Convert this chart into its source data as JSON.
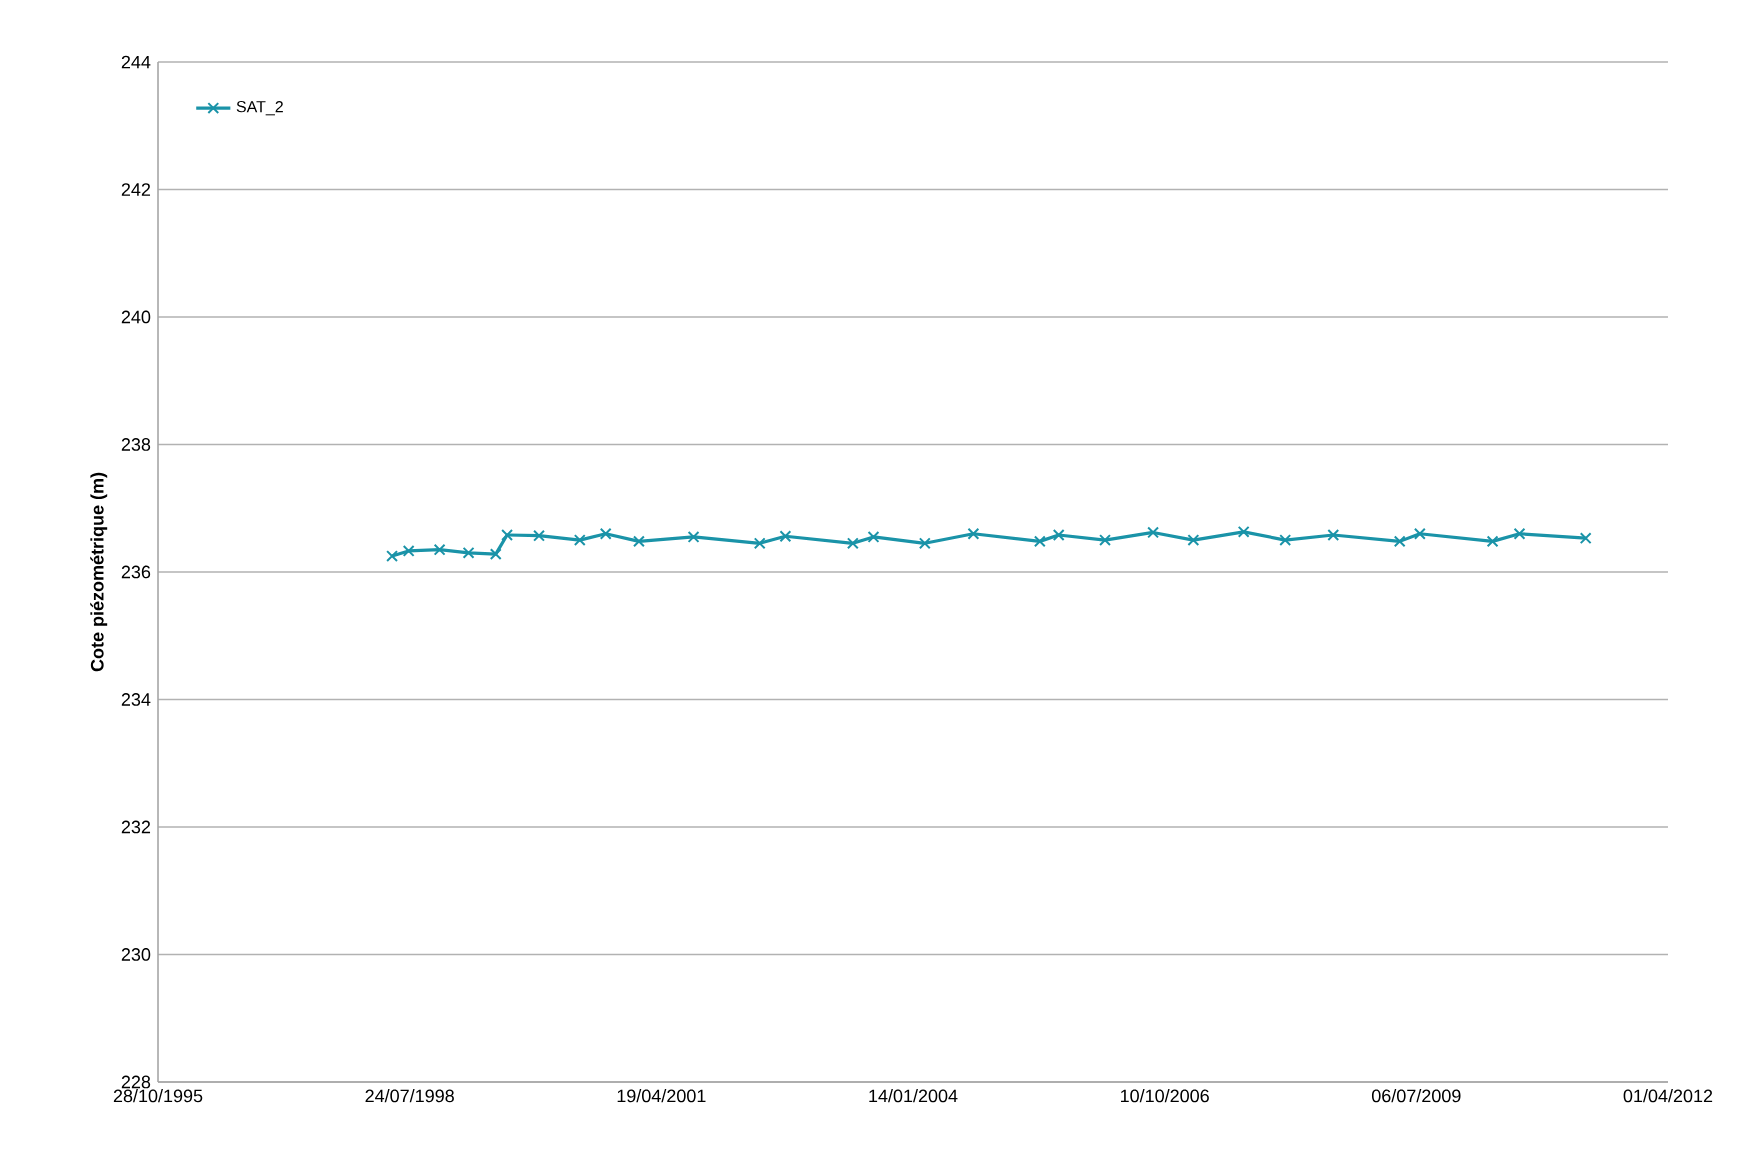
{
  "chart_data": {
    "type": "line",
    "ylabel": "Cote piézométrique (m)",
    "x": [
      "1998-05-15",
      "1998-07-20",
      "1998-11-20",
      "1999-03-15",
      "1999-07-01",
      "1999-08-15",
      "1999-12-20",
      "2000-05-30",
      "2000-09-10",
      "2001-01-20",
      "2001-08-25",
      "2002-05-15",
      "2002-08-25",
      "2003-05-20",
      "2003-08-10",
      "2004-03-01",
      "2004-09-10",
      "2005-06-01",
      "2005-08-15",
      "2006-02-15",
      "2006-08-25",
      "2007-02-01",
      "2007-08-20",
      "2008-02-01",
      "2008-08-10",
      "2009-05-01",
      "2009-07-20",
      "2010-05-05",
      "2010-08-20",
      "2011-05-10"
    ],
    "series": [
      {
        "name": "SAT_2",
        "color": "#1a93a8",
        "values": [
          236.25,
          236.33,
          236.35,
          236.3,
          236.28,
          236.58,
          236.57,
          236.5,
          236.6,
          236.48,
          236.55,
          236.45,
          236.56,
          236.45,
          236.55,
          236.45,
          236.6,
          236.48,
          236.58,
          236.5,
          236.62,
          236.5,
          236.63,
          236.5,
          236.58,
          236.48,
          236.6,
          236.48,
          236.6,
          236.53
        ]
      }
    ],
    "xlim": [
      "1995-10-28",
      "2012-04-01"
    ],
    "xticks": [
      {
        "value": "1995-10-28",
        "label": "28/10/1995"
      },
      {
        "value": "1998-07-24",
        "label": "24/07/1998"
      },
      {
        "value": "2001-04-19",
        "label": "19/04/2001"
      },
      {
        "value": "2004-01-14",
        "label": "14/01/2004"
      },
      {
        "value": "2006-10-10",
        "label": "10/10/2006"
      },
      {
        "value": "2009-07-06",
        "label": "06/07/2009"
      },
      {
        "value": "2012-04-01",
        "label": "01/04/2012"
      }
    ],
    "ylim": [
      228,
      244
    ],
    "yticks": [
      228,
      230,
      232,
      234,
      236,
      238,
      240,
      242,
      244
    ],
    "grid": "y",
    "legend": "top left",
    "marker": "cross",
    "line_style": "solid"
  }
}
